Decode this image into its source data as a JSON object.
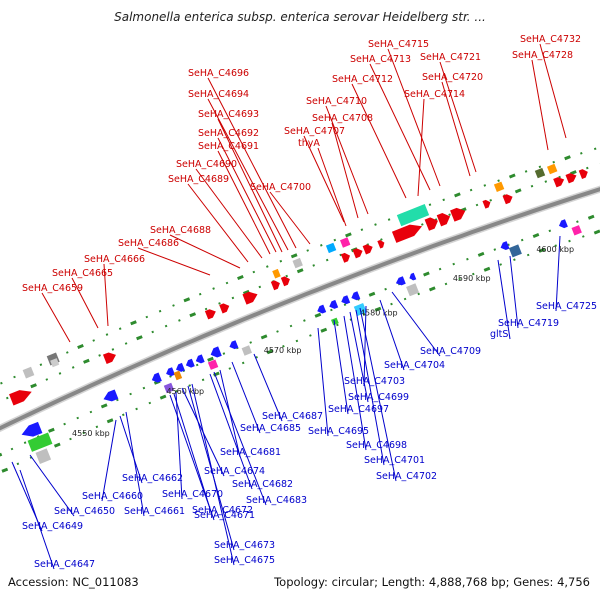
{
  "title": "Salmonella enterica subsp. enterica serovar Heidelberg str. ...",
  "footer": {
    "accession": "Accession: NC_011083",
    "topology": "Topology: circular; Length: 4,888,768 bp; Genes: 4,756"
  },
  "colors": {
    "forward_gene": "#e8000b",
    "reverse_gene": "#1a1aff",
    "forward_label": "#cc0000",
    "reverse_label": "#0000cc",
    "backbone": "#888888",
    "tick_dot": "#2e8b2e"
  },
  "ticks": [
    "4550 kbp",
    "4560 kbp",
    "4570 kbp",
    "4580 kbp",
    "4590 kbp",
    "4600 kbp"
  ],
  "forward_labels": [
    "SeHA_C4659",
    "SeHA_C4665",
    "SeHA_C4666",
    "SeHA_C4686",
    "SeHA_C4688",
    "SeHA_C4689",
    "SeHA_C4690",
    "SeHA_C4691",
    "SeHA_C4692",
    "SeHA_C4693",
    "SeHA_C4694",
    "SeHA_C4696",
    "SeHA_C4700",
    "thyA",
    "SeHA_C4707",
    "SeHA_C4708",
    "SeHA_C4710",
    "SeHA_C4712",
    "SeHA_C4713",
    "SeHA_C4714",
    "SeHA_C4715",
    "SeHA_C4720",
    "SeHA_C4721",
    "SeHA_C4728",
    "SeHA_C4732"
  ],
  "reverse_labels": [
    "SeHA_C4647",
    "SeHA_C4649",
    "SeHA_C4650",
    "SeHA_C4660",
    "SeHA_C4661",
    "SeHA_C4662",
    "SeHA_C4670",
    "SeHA_C4671",
    "SeHA_C4672",
    "SeHA_C4673",
    "SeHA_C4674",
    "SeHA_C4675",
    "SeHA_C4681",
    "SeHA_C4682",
    "SeHA_C4683",
    "SeHA_C4685",
    "SeHA_C4687",
    "SeHA_C4695",
    "SeHA_C4697",
    "SeHA_C4698",
    "SeHA_C4699",
    "SeHA_C4701",
    "SeHA_C4702",
    "SeHA_C4703",
    "SeHA_C4704",
    "SeHA_C4709",
    "gltS",
    "SeHA_C4719",
    "SeHA_C4725"
  ]
}
